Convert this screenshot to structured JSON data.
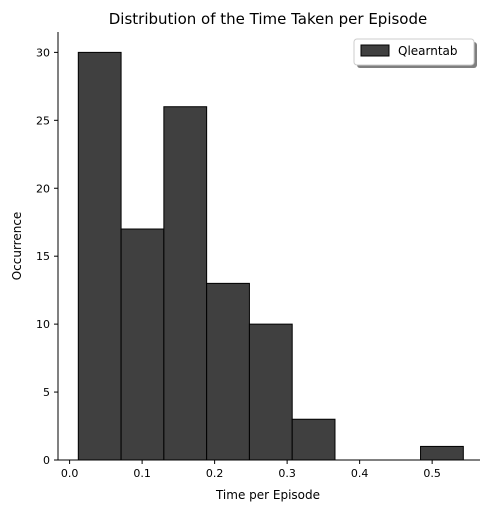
{
  "chart_data": {
    "type": "bar",
    "title": "Distribution of the Time Taken per Episode",
    "xlabel": "Time per Episode",
    "ylabel": "Occurrence",
    "xlim": [
      -0.016,
      0.566
    ],
    "ylim": [
      0,
      31.5
    ],
    "xticks": [
      0.0,
      0.1,
      0.2,
      0.3,
      0.4,
      0.5
    ],
    "xtick_labels": [
      "0.0",
      "0.1",
      "0.2",
      "0.3",
      "0.4",
      "0.5"
    ],
    "yticks": [
      0,
      5,
      10,
      15,
      20,
      25,
      30
    ],
    "ytick_labels": [
      "0",
      "5",
      "10",
      "15",
      "20",
      "25",
      "30"
    ],
    "bins": [
      {
        "x0": 0.012,
        "x1": 0.071,
        "count": 30
      },
      {
        "x0": 0.071,
        "x1": 0.13,
        "count": 17
      },
      {
        "x0": 0.13,
        "x1": 0.189,
        "count": 26
      },
      {
        "x0": 0.189,
        "x1": 0.248,
        "count": 13
      },
      {
        "x0": 0.248,
        "x1": 0.307,
        "count": 10
      },
      {
        "x0": 0.307,
        "x1": 0.366,
        "count": 3
      },
      {
        "x0": 0.366,
        "x1": 0.425,
        "count": 0
      },
      {
        "x0": 0.425,
        "x1": 0.484,
        "count": 0
      },
      {
        "x0": 0.484,
        "x1": 0.543,
        "count": 1
      }
    ],
    "series": [
      {
        "name": "Qlearntab",
        "color": "#404040"
      }
    ],
    "edge_color": "#000000",
    "grid": false,
    "legend_position": "top-right"
  }
}
